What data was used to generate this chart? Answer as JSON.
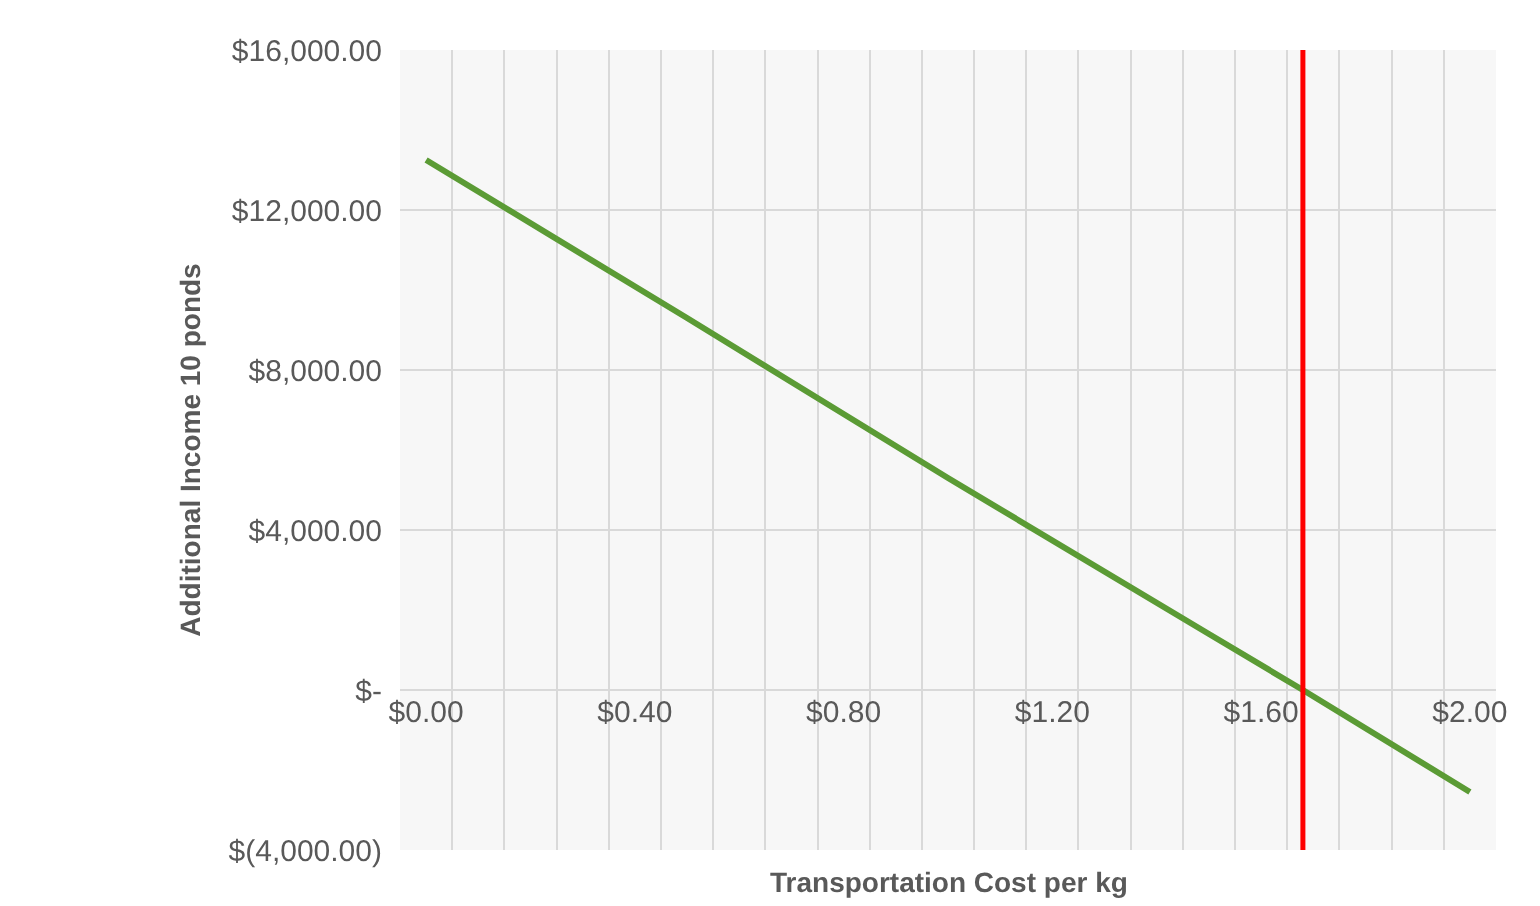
{
  "chart_data": {
    "type": "line",
    "xlabel": "Transportation Cost per kg",
    "ylabel": "Additional Income 10 ponds",
    "x": [
      0,
      0.5,
      1.0,
      1.5,
      1.68,
      2.0
    ],
    "series": [
      {
        "color": "#5b9b35",
        "values": [
          13250,
          9300,
          5300,
          1400,
          0,
          -2550
        ]
      }
    ],
    "xlim": [
      -0.05,
      2.05
    ],
    "xticks": [
      {
        "value": 0,
        "label": "$0.00"
      },
      {
        "value": 0.4,
        "label": "$0.40"
      },
      {
        "value": 0.8,
        "label": "$0.80"
      },
      {
        "value": 1.2,
        "label": "$1.20"
      },
      {
        "value": 1.6,
        "label": "$1.60"
      },
      {
        "value": 2.0,
        "label": "$2.00"
      }
    ],
    "ylim": [
      -4000,
      16000
    ],
    "yticks": [
      {
        "value": -4000,
        "label": "$(4,000.00)"
      },
      {
        "value": 0,
        "label": "$-"
      },
      {
        "value": 4000,
        "label": "$4,000.00"
      },
      {
        "value": 8000,
        "label": "$8,000.00"
      },
      {
        "value": 12000,
        "label": "$12,000.00"
      },
      {
        "value": 16000,
        "label": "$16,000.00"
      }
    ],
    "ref_lines": [
      {
        "axis": "x",
        "value": 1.68,
        "color": "#ff0000"
      }
    ],
    "grid": true,
    "marker": "none",
    "line_style": "solid"
  }
}
